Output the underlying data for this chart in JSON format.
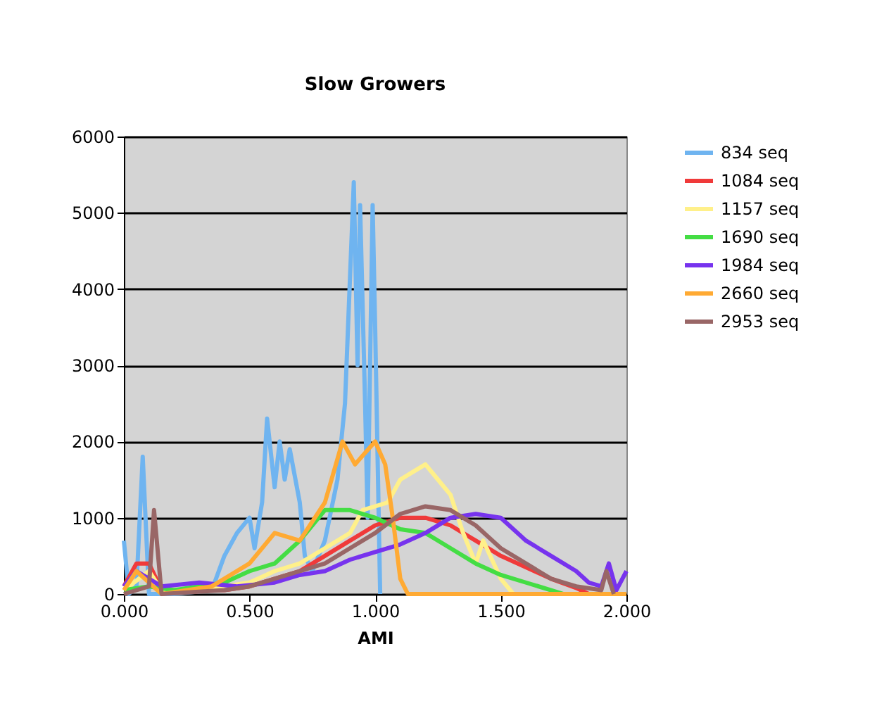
{
  "chart_data": {
    "type": "line",
    "title": "Slow Growers",
    "xlabel": "AMI",
    "xlim": [
      0,
      2
    ],
    "xticks": [
      {
        "value": 0,
        "label": "0.000"
      },
      {
        "value": 0.5,
        "label": "0.500"
      },
      {
        "value": 1,
        "label": "1.000"
      },
      {
        "value": 1.5,
        "label": "1.500"
      },
      {
        "value": 2,
        "label": "2.000"
      }
    ],
    "ylim": [
      0,
      6000
    ],
    "yticks": [
      0,
      1000,
      2000,
      3000,
      4000,
      5000,
      6000
    ],
    "grid": "y",
    "legend": "right",
    "marker": "none",
    "line_style": "solid",
    "series": [
      {
        "name": "834 seq",
        "color": "#6fb4f0",
        "x": [
          0,
          0.02,
          0.05,
          0.075,
          0.1,
          0.2,
          0.35,
          0.4,
          0.45,
          0.5,
          0.52,
          0.55,
          0.57,
          0.6,
          0.62,
          0.64,
          0.66,
          0.7,
          0.72,
          0.75,
          0.8,
          0.85,
          0.88,
          0.915,
          0.93,
          0.94,
          0.96,
          0.97,
          0.99,
          1.0,
          1.02
        ],
        "values": [
          700,
          0,
          100,
          1800,
          0,
          0,
          50,
          500,
          800,
          1000,
          600,
          1200,
          2300,
          1400,
          2000,
          1500,
          1900,
          1200,
          500,
          300,
          700,
          1500,
          2500,
          5400,
          3000,
          5100,
          2500,
          1000,
          5100,
          3500,
          0
        ]
      },
      {
        "name": "1084 seq",
        "color": "#f03a3a",
        "x": [
          0,
          0.05,
          0.1,
          0.15,
          0.3,
          0.4,
          0.5,
          0.6,
          0.7,
          0.8,
          0.9,
          1.0,
          1.1,
          1.2,
          1.3,
          1.4,
          1.5,
          1.6,
          1.7,
          1.8,
          1.85
        ],
        "values": [
          100,
          400,
          400,
          50,
          50,
          50,
          100,
          200,
          300,
          500,
          700,
          900,
          1000,
          1000,
          900,
          700,
          500,
          350,
          200,
          80,
          0
        ]
      },
      {
        "name": "1157 seq",
        "color": "#fff08a",
        "x": [
          0,
          0.1,
          0.15,
          0.3,
          0.5,
          0.6,
          0.7,
          0.8,
          0.9,
          0.95,
          1.05,
          1.1,
          1.15,
          1.2,
          1.25,
          1.3,
          1.35,
          1.4,
          1.43,
          1.5,
          1.55
        ],
        "values": [
          50,
          300,
          50,
          50,
          150,
          300,
          400,
          600,
          800,
          1100,
          1200,
          1500,
          1600,
          1700,
          1500,
          1300,
          800,
          400,
          700,
          200,
          0
        ]
      },
      {
        "name": "1690 seq",
        "color": "#44dd44",
        "x": [
          0,
          0.1,
          0.2,
          0.4,
          0.5,
          0.6,
          0.7,
          0.8,
          0.9,
          1.0,
          1.1,
          1.2,
          1.3,
          1.4,
          1.5,
          1.6,
          1.7,
          1.75
        ],
        "values": [
          50,
          100,
          50,
          150,
          300,
          400,
          700,
          1100,
          1100,
          1000,
          850,
          800,
          600,
          400,
          250,
          150,
          50,
          0
        ]
      },
      {
        "name": "1984 seq",
        "color": "#7733ee",
        "x": [
          0,
          0.05,
          0.15,
          0.3,
          0.45,
          0.6,
          0.7,
          0.8,
          0.9,
          1.0,
          1.1,
          1.2,
          1.3,
          1.4,
          1.5,
          1.6,
          1.7,
          1.8,
          1.85,
          1.9,
          1.93,
          1.96,
          2.0
        ],
        "values": [
          100,
          300,
          100,
          150,
          100,
          150,
          250,
          300,
          450,
          550,
          650,
          800,
          1000,
          1050,
          1000,
          700,
          500,
          300,
          150,
          100,
          400,
          50,
          300
        ]
      },
      {
        "name": "2660 seq",
        "color": "#ffaa33",
        "x": [
          0,
          0.05,
          0.15,
          0.35,
          0.5,
          0.6,
          0.7,
          0.8,
          0.87,
          0.92,
          1.0,
          1.04,
          1.07,
          1.1,
          1.13,
          1.5,
          2.0
        ],
        "values": [
          50,
          300,
          0,
          100,
          400,
          800,
          700,
          1200,
          2000,
          1700,
          2000,
          1700,
          1000,
          200,
          0,
          0,
          0
        ]
      },
      {
        "name": "2953 seq",
        "color": "#996666",
        "x": [
          0,
          0.1,
          0.12,
          0.15,
          0.4,
          0.5,
          0.6,
          0.8,
          0.9,
          1.0,
          1.1,
          1.2,
          1.3,
          1.4,
          1.5,
          1.6,
          1.7,
          1.8,
          1.9,
          1.92,
          1.95
        ],
        "values": [
          0,
          100,
          1100,
          0,
          50,
          100,
          200,
          400,
          600,
          800,
          1050,
          1150,
          1100,
          900,
          600,
          400,
          200,
          100,
          50,
          300,
          0
        ]
      }
    ]
  }
}
